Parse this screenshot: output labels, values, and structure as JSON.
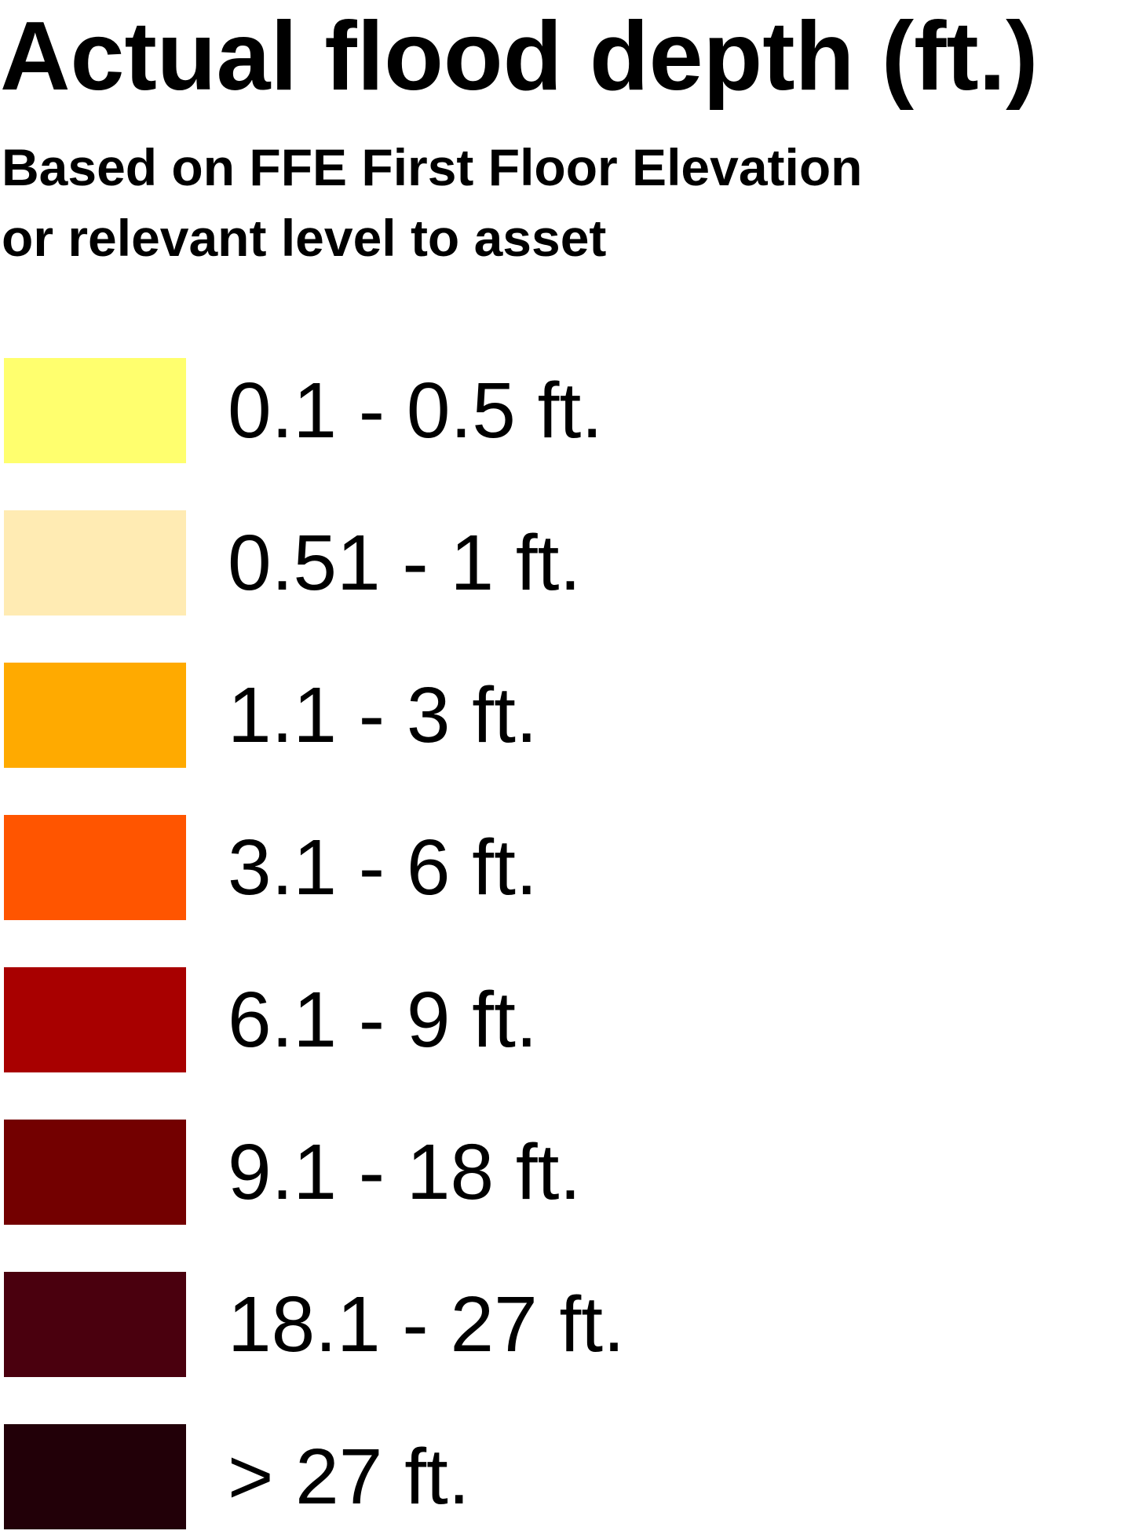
{
  "legend": {
    "title": "Actual flood depth (ft.)",
    "subtitle_lines": [
      "Based on FFE First Floor Elevation",
      "or relevant level to asset"
    ],
    "items": [
      {
        "label": "0.1 - 0.5 ft.",
        "color": "#FFFF6E"
      },
      {
        "label": "0.51 - 1 ft.",
        "color": "#FFEBB3"
      },
      {
        "label": "1.1 - 3 ft.",
        "color": "#FFAA00"
      },
      {
        "label": "3.1 - 6 ft.",
        "color": "#FF5500"
      },
      {
        "label": "6.1 - 9 ft.",
        "color": "#A80000"
      },
      {
        "label": "9.1 - 18 ft.",
        "color": "#730000"
      },
      {
        "label": "18.1 - 27 ft.",
        "color": "#4A000E"
      },
      {
        "label": "> 27 ft.",
        "color": "#220008"
      }
    ]
  }
}
